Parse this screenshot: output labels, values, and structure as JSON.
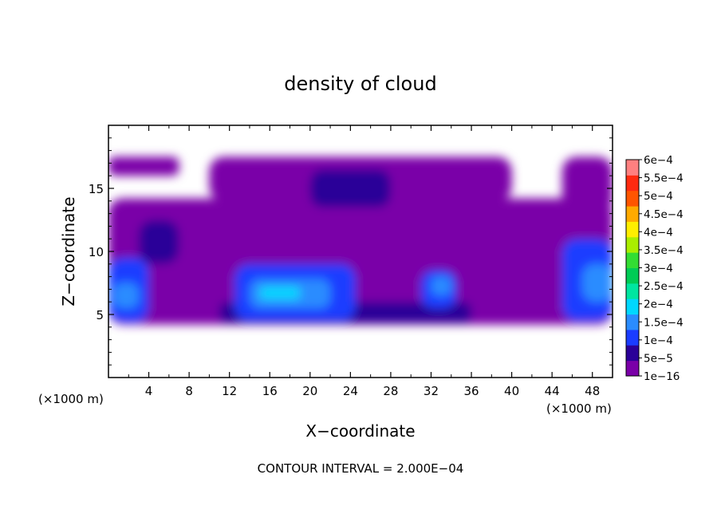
{
  "chart_data": {
    "type": "heatmap",
    "title": "density of cloud",
    "xlabel": "X−coordinate",
    "ylabel": "Z−coordinate",
    "x_unit_left": "(×1000 m)",
    "x_unit_right": "(×1000 m)",
    "footnote": "CONTOUR INTERVAL = 2.000E−04",
    "xlim": [
      0,
      50
    ],
    "ylim": [
      0,
      20
    ],
    "xticks": [
      4,
      8,
      12,
      16,
      20,
      24,
      28,
      32,
      36,
      40,
      44,
      48
    ],
    "xtick_labels": [
      "4",
      "8",
      "12",
      "16",
      "20",
      "24",
      "28",
      "32",
      "36",
      "40",
      "44",
      "48"
    ],
    "yticks": [
      5,
      10,
      15
    ],
    "ytick_labels": [
      "5",
      "10",
      "15"
    ],
    "colorbar": {
      "levels": [
        "1e−16",
        "5e−5",
        "1e−4",
        "1.5e−4",
        "2e−4",
        "2.5e−4",
        "3e−4",
        "3.5e−4",
        "4e−4",
        "4.5e−4",
        "5e−4",
        "5.5e−4",
        "6e−4"
      ],
      "colors": [
        "#7a00a8",
        "#2a0098",
        "#1a3cff",
        "#2a8cff",
        "#00d8ff",
        "#00e6a0",
        "#00cc55",
        "#33dd33",
        "#aaee00",
        "#ffee00",
        "#ffaa00",
        "#ff5500",
        "#ff2a10",
        "#ff8080"
      ]
    },
    "regions": [
      {
        "level": 0,
        "x": [
          0,
          50
        ],
        "z": [
          4.2,
          14.2
        ]
      },
      {
        "level": 0,
        "x": [
          10,
          40
        ],
        "z": [
          14,
          17.5
        ]
      },
      {
        "level": 0,
        "x": [
          0,
          7
        ],
        "z": [
          16,
          17.5
        ]
      },
      {
        "level": 0,
        "x": [
          45,
          50
        ],
        "z": [
          13,
          17.5
        ]
      },
      {
        "level": 1,
        "x": [
          20,
          28
        ],
        "z": [
          13.5,
          16.5
        ]
      },
      {
        "level": 1,
        "x": [
          11,
          36
        ],
        "z": [
          4.3,
          6
        ]
      },
      {
        "level": 2,
        "x": [
          12.5,
          24.5
        ],
        "z": [
          4.5,
          9
        ]
      },
      {
        "level": 3,
        "x": [
          14,
          22
        ],
        "z": [
          5.5,
          7.8
        ]
      },
      {
        "level": 4,
        "x": [
          15,
          19
        ],
        "z": [
          6.2,
          7.2
        ]
      },
      {
        "level": 2,
        "x": [
          0,
          4
        ],
        "z": [
          4.4,
          9.5
        ]
      },
      {
        "level": 3,
        "x": [
          0.5,
          3
        ],
        "z": [
          5.5,
          7.5
        ]
      },
      {
        "level": 2,
        "x": [
          31,
          34.5
        ],
        "z": [
          5.5,
          8.5
        ]
      },
      {
        "level": 3,
        "x": [
          32,
          34
        ],
        "z": [
          6.5,
          8
        ]
      },
      {
        "level": 2,
        "x": [
          45,
          50
        ],
        "z": [
          4.5,
          11
        ]
      },
      {
        "level": 3,
        "x": [
          47,
          50
        ],
        "z": [
          6,
          9
        ]
      },
      {
        "level": 1,
        "x": [
          3,
          7
        ],
        "z": [
          9,
          12.5
        ]
      }
    ]
  }
}
